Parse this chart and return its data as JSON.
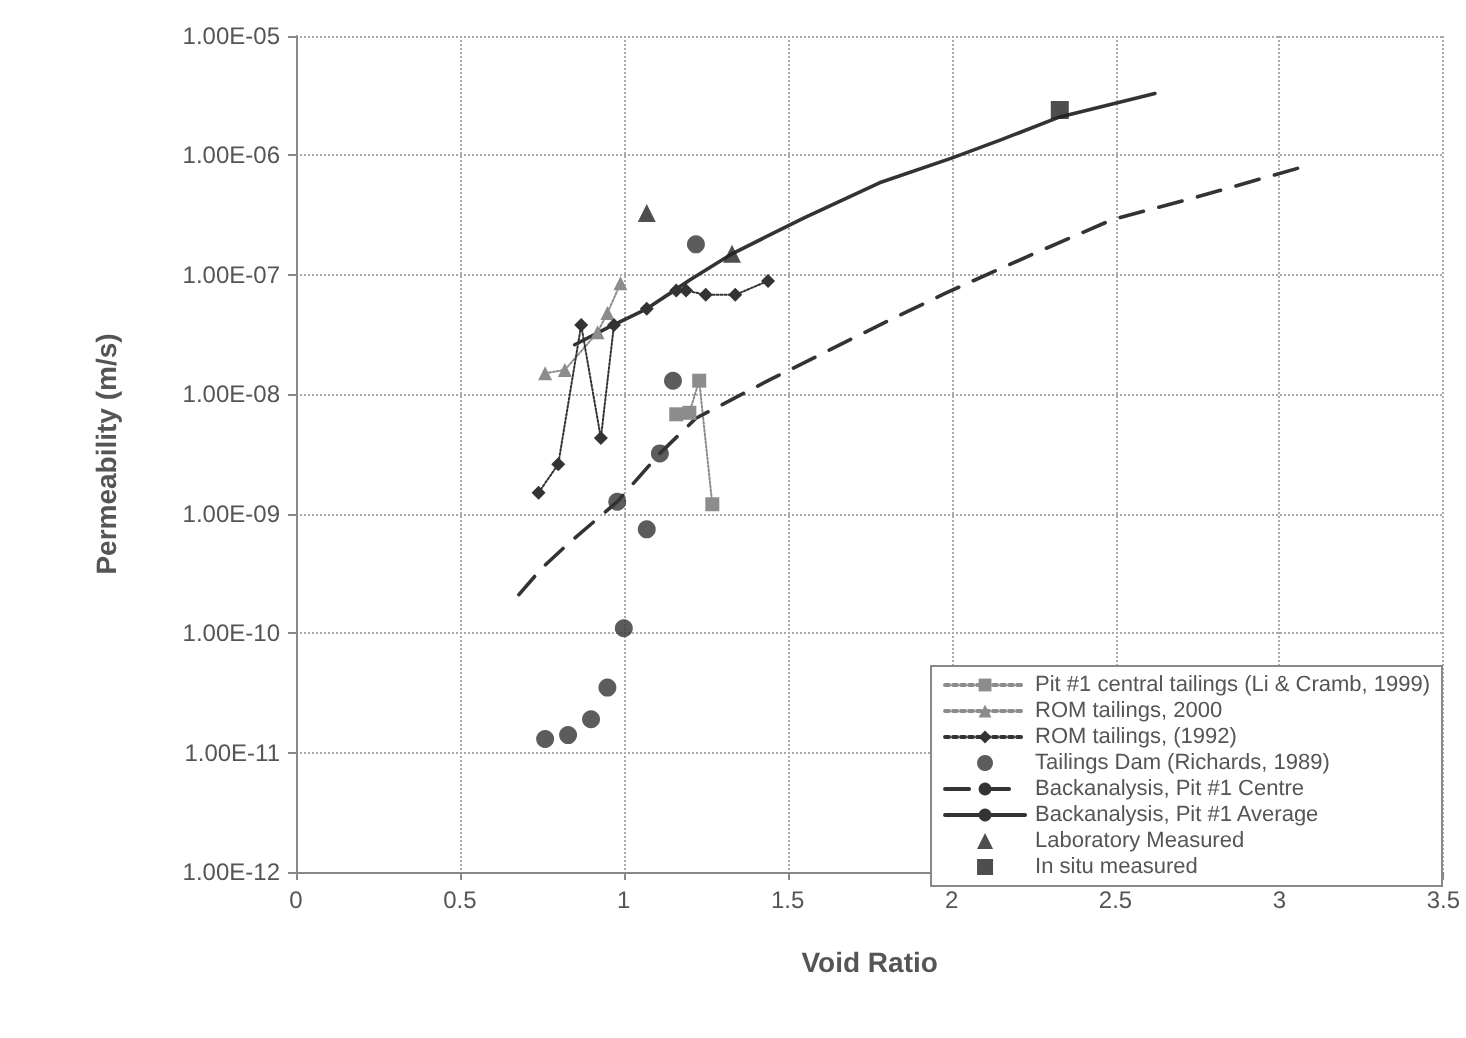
{
  "chart_data": {
    "type": "scatter",
    "xlabel": "Void Ratio",
    "ylabel": "Permeability (m/s)",
    "log": "y",
    "grid": true,
    "legend": "bottom right",
    "xlim": [
      0,
      3.5
    ],
    "xticks": [
      0,
      0.5,
      1,
      1.5,
      2,
      2.5,
      3,
      3.5
    ],
    "ylim": [
      1e-12,
      1e-05
    ],
    "yticks": [
      {
        "value": 1e-12,
        "label": "1.00E-12"
      },
      {
        "value": 1e-11,
        "label": "1.00E-11"
      },
      {
        "value": 1e-10,
        "label": "1.00E-10"
      },
      {
        "value": 1e-09,
        "label": "1.00E-09"
      },
      {
        "value": 1e-08,
        "label": "1.00E-08"
      },
      {
        "value": 1e-07,
        "label": "1.00E-07"
      },
      {
        "value": 1e-06,
        "label": "1.00E-06"
      },
      {
        "value": 1e-05,
        "label": "1.00E-05"
      }
    ],
    "series": [
      {
        "name": "Pit #1 central tailings (Li & Cramb, 1999)",
        "type": "line",
        "line_style": "dotted",
        "marker": "square",
        "color": "#8c8c8c",
        "x": [
          1.16,
          1.2,
          1.23,
          1.27
        ],
        "values": [
          6.8e-09,
          7e-09,
          1.3e-08,
          1.2e-09
        ]
      },
      {
        "name": "ROM tailings, 2000",
        "type": "line",
        "line_style": "dotted",
        "marker": "triangle",
        "color": "#8c8c8c",
        "x": [
          0.76,
          0.82,
          0.92,
          0.95,
          0.99
        ],
        "values": [
          1.5e-08,
          1.6e-08,
          3.3e-08,
          4.8e-08,
          8.5e-08
        ]
      },
      {
        "name": "ROM tailings, (1992)",
        "type": "line",
        "line_style": "dotted",
        "marker": "diamond",
        "color": "#333333",
        "x": [
          0.74,
          0.8,
          0.87,
          0.93,
          0.97,
          1.07,
          1.16,
          1.19,
          1.25,
          1.34,
          1.44
        ],
        "values": [
          1.5e-09,
          2.6e-09,
          3.8e-08,
          4.3e-09,
          3.8e-08,
          5.2e-08,
          7.4e-08,
          7.4e-08,
          6.8e-08,
          6.8e-08,
          8.9e-08
        ]
      },
      {
        "name": "Tailings Dam (Richards, 1989)",
        "type": "scatter",
        "marker": "circle",
        "color": "#333333",
        "x": [
          0.76,
          0.83,
          0.9,
          0.95,
          0.98,
          1.0,
          1.07,
          1.11,
          1.15,
          1.22
        ],
        "values": [
          1.3e-11,
          1.4e-11,
          1.9e-11,
          3.5e-11,
          1.26e-09,
          1.1e-10,
          7.4e-10,
          3.2e-09,
          1.3e-08,
          1.8e-07
        ]
      },
      {
        "name": "Backanalysis, Pit #1 Centre",
        "type": "line",
        "line_style": "dashed",
        "marker": "none",
        "color": "#333333",
        "x": [
          0.68,
          0.75,
          0.83,
          0.98,
          1.11,
          1.22,
          1.44,
          1.78,
          1.98,
          2.25,
          2.49,
          2.75,
          3.07
        ],
        "values": [
          2.1e-10,
          3.5e-10,
          5.6e-10,
          1.26e-09,
          3.2e-09,
          6.3e-09,
          1.3e-08,
          3.8e-08,
          7e-08,
          1.5e-07,
          2.9e-07,
          4.5e-07,
          8e-07
        ]
      },
      {
        "name": "Backanalysis, Pit #1 Average",
        "type": "line",
        "line_style": "solid",
        "marker": "none",
        "color": "#333333",
        "x": [
          0.85,
          0.95,
          1.07,
          1.2,
          1.33,
          1.55,
          1.78,
          2.0,
          2.15,
          2.33,
          2.62
        ],
        "values": [
          2.6e-08,
          3.6e-08,
          5.2e-08,
          9e-08,
          1.5e-07,
          3e-07,
          5.9e-07,
          9.5e-07,
          1.35e-06,
          2.1e-06,
          3.3e-06
        ]
      },
      {
        "name": "Laboratory Measured",
        "type": "scatter",
        "marker": "triangle",
        "color": "#222222",
        "x": [
          1.07,
          1.33
        ],
        "values": [
          3.3e-07,
          1.5e-07
        ]
      },
      {
        "name": "In situ measured",
        "type": "scatter",
        "marker": "square",
        "color": "#222222",
        "x": [
          2.33
        ],
        "values": [
          2.4e-06
        ]
      }
    ]
  }
}
